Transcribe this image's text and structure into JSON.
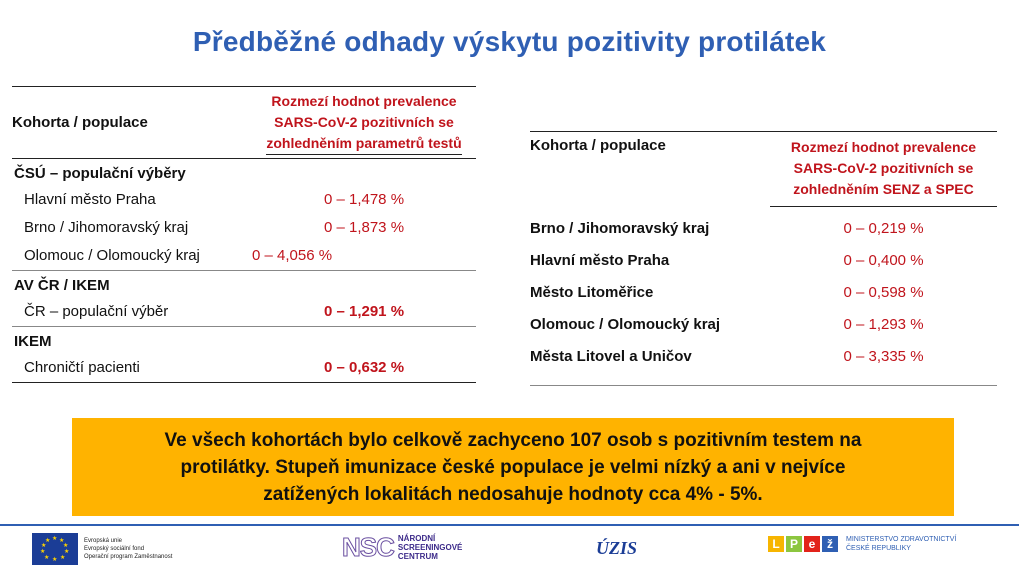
{
  "title": "Předběžné odhady výskytu pozitivity protilátek",
  "left_table": {
    "col1_header": "Kohorta / populace",
    "col2_header_lines": [
      "Rozmezí hodnot prevalence",
      "SARS-CoV-2 pozitivních se",
      "zohledněním parametrů testů"
    ],
    "sections": [
      {
        "name": "ČSÚ – populační výběry",
        "rows": [
          {
            "label": "Hlavní město Praha",
            "value": "0 – 1,478 %",
            "bold": false
          },
          {
            "label": "Brno / Jihomoravský kraj",
            "value": "0 – 1,873 %",
            "bold": false
          },
          {
            "label": "Olomouc / Olomoucký kraj",
            "value": "0 – 4,056 %",
            "bold": false
          }
        ]
      },
      {
        "name": "AV ČR / IKEM",
        "rows": [
          {
            "label": "ČR – populační výběr",
            "value": "0 – 1,291 %",
            "bold": true
          }
        ]
      },
      {
        "name": "IKEM",
        "rows": [
          {
            "label": "Chroničtí pacienti",
            "value": "0 – 0,632 %",
            "bold": true
          }
        ]
      }
    ]
  },
  "right_table": {
    "col1_header": "Kohorta / populace",
    "col2_header_lines": [
      "Rozmezí hodnot prevalence",
      "SARS-CoV-2 pozitivních se",
      "zohledněním SENZ a SPEC"
    ],
    "rows": [
      {
        "label": "Brno / Jihomoravský kraj",
        "value": "0 – 0,219 %"
      },
      {
        "label": "Hlavní město Praha",
        "value": "0 – 0,400 %"
      },
      {
        "label": "Město Litoměřice",
        "value": "0 – 0,598 %"
      },
      {
        "label": "Olomouc / Olomoucký kraj",
        "value": "0 – 1,293 %"
      },
      {
        "label": "Města Litovel a Uničov",
        "value": "0 – 3,335 %"
      }
    ]
  },
  "callout_lines": [
    "Ve všech kohortách bylo celkově zachyceno 107 osob s pozitivním testem na",
    "protilátky. Stupeň imunizace české populace je velmi nízký a ani v nejvíce",
    "zatížených lokalitách nedosahuje hodnoty cca 4% - 5%."
  ],
  "footer": {
    "eu_lines": [
      "Evropská unie",
      "Evropský sociální fond",
      "Operační program Zaměstnanost"
    ],
    "nsc_mark": "NSC",
    "nsc_lines": [
      "NÁRODNÍ",
      "SCREENINGOVÉ",
      "CENTRUM"
    ],
    "uzis": "ÚZIS",
    "mz_lines": [
      "MINISTERSTVO ZDRAVOTNICTVÍ",
      "ČESKÉ REPUBLIKY"
    ]
  },
  "colors": {
    "title": "#2f5fb3",
    "value_red": "#c0141c",
    "callout_bg": "#ffb300",
    "footer_rule": "#2f5fb3"
  }
}
